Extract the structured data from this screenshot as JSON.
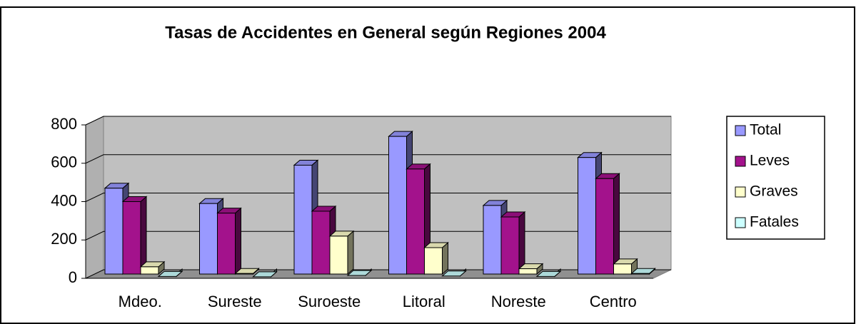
{
  "chart_data": {
    "type": "bar3d",
    "title": "Tasas de Accidentes en General según Regiones 2004",
    "categories": [
      "Mdeo.",
      "Sureste",
      "Suroeste",
      "Litoral",
      "Noreste",
      "Centro"
    ],
    "series": [
      {
        "name": "Total",
        "color": "#9999ff",
        "values": [
          470,
          390,
          590,
          740,
          380,
          630
        ]
      },
      {
        "name": "Leves",
        "color": "#a3128c",
        "values": [
          400,
          340,
          350,
          570,
          320,
          520
        ]
      },
      {
        "name": "Graves",
        "color": "#ffffcc",
        "values": [
          60,
          25,
          220,
          160,
          50,
          75
        ]
      },
      {
        "name": "Fatales",
        "color": "#ccffff",
        "values": [
          10,
          8,
          15,
          12,
          10,
          25
        ]
      }
    ],
    "ylim": [
      0,
      800
    ],
    "yticks": [
      0,
      200,
      400,
      600,
      800
    ],
    "grid": true,
    "legend": "right"
  }
}
